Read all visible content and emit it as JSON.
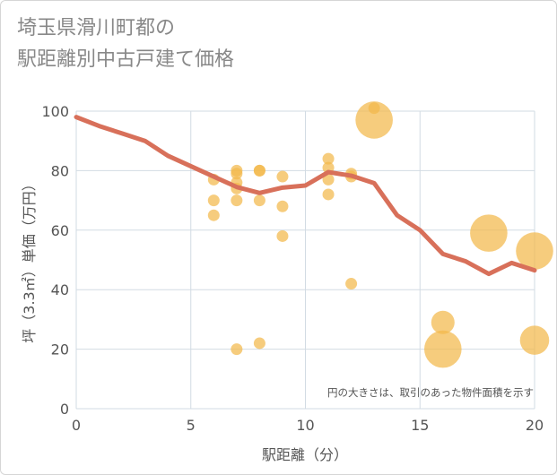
{
  "chart_data": {
    "type": "scatter",
    "title_lines": [
      "埼玉県滑川町都の",
      "駅距離別中古戸建て価格"
    ],
    "xlabel": "駅距離（分）",
    "ylabel": "坪（3.3㎡）単価（万円）",
    "xlim": [
      0,
      20
    ],
    "ylim": [
      0,
      100
    ],
    "x_ticks": [
      "0",
      "5",
      "10",
      "15",
      "20"
    ],
    "y_ticks": [
      "0",
      "20",
      "40",
      "60",
      "80",
      "100"
    ],
    "grid": true,
    "note": "円の大きさは、取引のあった物件面積を示す",
    "colors": {
      "bubble": "#f2b84b",
      "line": "#d8705a",
      "grid": "#d2dbe3",
      "text": "#555555",
      "title": "#888888"
    },
    "bubbles": [
      {
        "x": 6,
        "y": 77,
        "s": 1
      },
      {
        "x": 6,
        "y": 70,
        "s": 1
      },
      {
        "x": 6,
        "y": 65,
        "s": 1
      },
      {
        "x": 7,
        "y": 80,
        "s": 1
      },
      {
        "x": 7,
        "y": 79,
        "s": 1
      },
      {
        "x": 7,
        "y": 76,
        "s": 1
      },
      {
        "x": 7,
        "y": 74,
        "s": 1
      },
      {
        "x": 7,
        "y": 70,
        "s": 1
      },
      {
        "x": 7,
        "y": 20,
        "s": 1
      },
      {
        "x": 8,
        "y": 80,
        "s": 1
      },
      {
        "x": 8,
        "y": 80,
        "s": 1
      },
      {
        "x": 8,
        "y": 70,
        "s": 1
      },
      {
        "x": 8,
        "y": 22,
        "s": 1
      },
      {
        "x": 9,
        "y": 78,
        "s": 1
      },
      {
        "x": 9,
        "y": 68,
        "s": 1
      },
      {
        "x": 9,
        "y": 58,
        "s": 1
      },
      {
        "x": 11,
        "y": 84,
        "s": 1
      },
      {
        "x": 11,
        "y": 81,
        "s": 1
      },
      {
        "x": 11,
        "y": 77,
        "s": 1
      },
      {
        "x": 11,
        "y": 72,
        "s": 1
      },
      {
        "x": 12,
        "y": 79,
        "s": 1
      },
      {
        "x": 12,
        "y": 78,
        "s": 1
      },
      {
        "x": 12,
        "y": 42,
        "s": 1
      },
      {
        "x": 13,
        "y": 101,
        "s": 1
      },
      {
        "x": 13,
        "y": 97,
        "s": 3.2
      },
      {
        "x": 16,
        "y": 29,
        "s": 2
      },
      {
        "x": 16,
        "y": 20,
        "s": 3.2
      },
      {
        "x": 18,
        "y": 59,
        "s": 3.2
      },
      {
        "x": 20,
        "y": 53,
        "s": 3.2
      },
      {
        "x": 20,
        "y": 23,
        "s": 2.5
      }
    ],
    "trend": {
      "x": [
        0,
        1,
        2,
        3,
        4,
        5,
        6,
        7,
        8,
        9,
        10,
        11,
        12,
        13,
        14,
        15,
        16,
        17,
        18,
        19,
        20
      ],
      "y": [
        98,
        95,
        92.5,
        90,
        85,
        81.5,
        78,
        74.5,
        72.5,
        74.3,
        75,
        79.5,
        78.3,
        75.8,
        65,
        60,
        52,
        49.5,
        45.3,
        49,
        46.5
      ]
    }
  }
}
